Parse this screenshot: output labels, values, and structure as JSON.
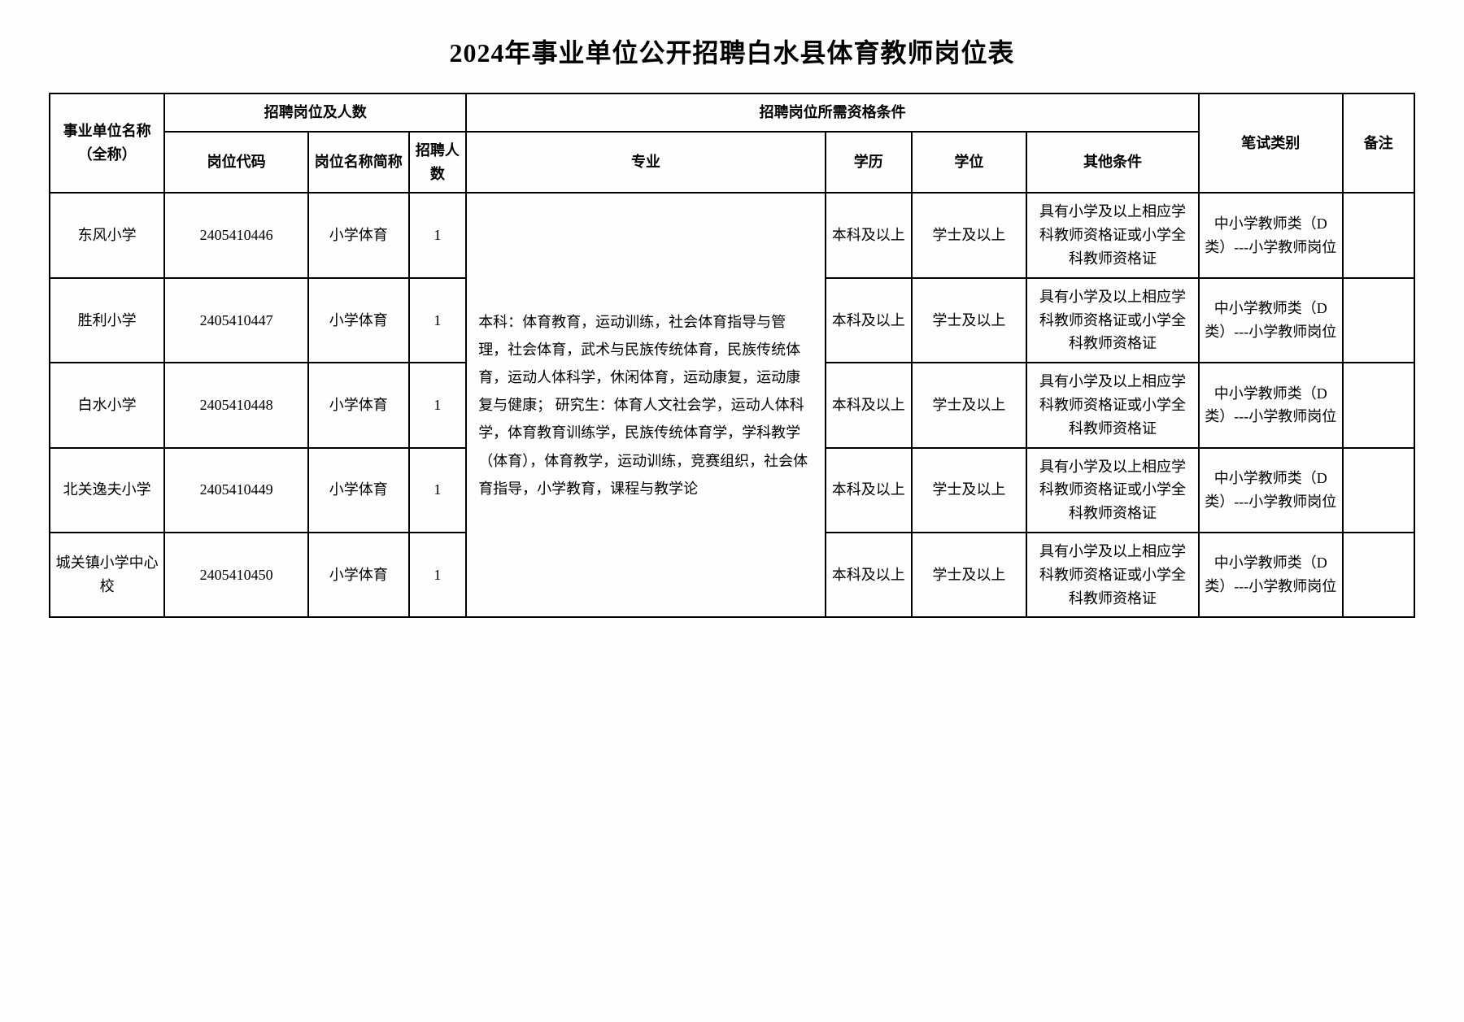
{
  "title": "2024年事业单位公开招聘白水县体育教师岗位表",
  "headers": {
    "unit": "事业单位名称（全称）",
    "group_position": "招聘岗位及人数",
    "group_req": "招聘岗位所需资格条件",
    "position_code": "岗位代码",
    "position_name": "岗位名称简称",
    "count": "招聘人数",
    "major": "专业",
    "education": "学历",
    "degree": "学位",
    "other": "其他条件",
    "exam_type": "笔试类别",
    "note": "备注"
  },
  "shared": {
    "major": "本科：体育教育，运动训练，社会体育指导与管理，社会体育，武术与民族传统体育，民族传统体育，运动人体科学，休闲体育，运动康复，运动康复与健康；\n研究生：体育人文社会学，运动人体科学，体育教育训练学，民族传统体育学，学科教学（体育），体育教学，运动训练，竞赛组织，社会体育指导，小学教育，课程与教学论",
    "education": "本科及以上",
    "degree": "学士及以上",
    "other": "具有小学及以上相应学科教师资格证或小学全科教师资格证",
    "exam_type": "中小学教师类（D类）---小学教师岗位"
  },
  "rows": [
    {
      "unit": "东风小学",
      "code": "2405410446",
      "pos": "小学体育",
      "count": "1"
    },
    {
      "unit": "胜利小学",
      "code": "2405410447",
      "pos": "小学体育",
      "count": "1"
    },
    {
      "unit": "白水小学",
      "code": "2405410448",
      "pos": "小学体育",
      "count": "1"
    },
    {
      "unit": "北关逸夫小学",
      "code": "2405410449",
      "pos": "小学体育",
      "count": "1"
    },
    {
      "unit": "城关镇小学中心校",
      "code": "2405410450",
      "pos": "小学体育",
      "count": "1"
    }
  ],
  "styling": {
    "title_fontsize": 32,
    "cell_fontsize": 18,
    "border_color": "#000000",
    "border_width": 2,
    "background_color": "#fefefe",
    "text_color": "#000000",
    "font_family": "SimSun"
  }
}
